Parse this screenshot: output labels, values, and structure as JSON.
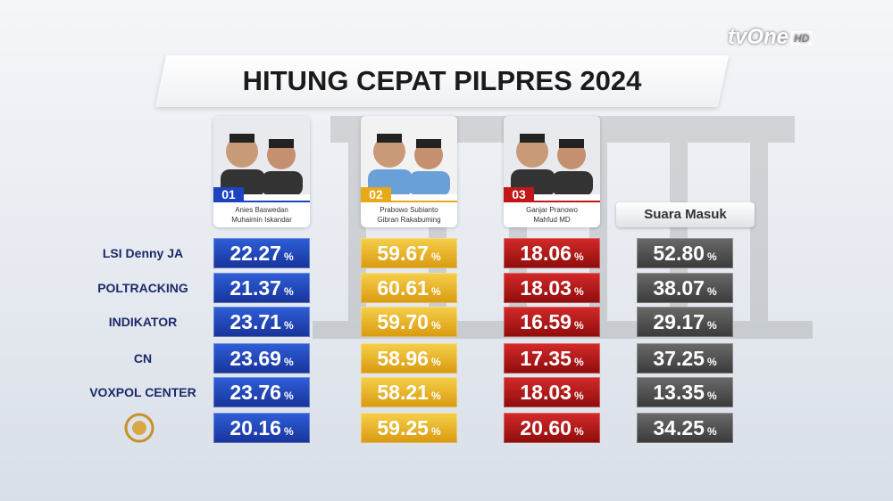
{
  "header": {
    "title": "HITUNG CEPAT PILPRES 2024",
    "channel": "tvOne",
    "channel_badge": "HD"
  },
  "candidates": [
    {
      "number": "01",
      "names": [
        "Anies Baswedan",
        "Muhaimin Iskandar"
      ]
    },
    {
      "number": "02",
      "names": [
        "Prabowo Subianto",
        "Gibran Rakabuming"
      ]
    },
    {
      "number": "03",
      "names": [
        "Ganjar Pranowo",
        "Mahfud MD"
      ]
    }
  ],
  "table": {
    "columns_extra": "Suara Masuk",
    "unit": "%",
    "rows": [
      {
        "pollster": "LSI Denny JA",
        "values": [
          "22.27",
          "59.67",
          "18.06",
          "52.80"
        ]
      },
      {
        "pollster": "POLTRACKING",
        "values": [
          "21.37",
          "60.61",
          "18.03",
          "38.07"
        ]
      },
      {
        "pollster": "INDIKATOR",
        "values": [
          "23.71",
          "59.70",
          "16.59",
          "29.17"
        ]
      },
      {
        "pollster": "CN",
        "values": [
          "23.69",
          "58.96",
          "17.35",
          "37.25"
        ]
      },
      {
        "pollster": "VOXPOL CENTER",
        "values": [
          "23.76",
          "58.21",
          "18.03",
          "13.35"
        ]
      },
      {
        "values": [
          "20.16",
          "59.25",
          "20.60",
          "34.25"
        ]
      }
    ]
  }
}
